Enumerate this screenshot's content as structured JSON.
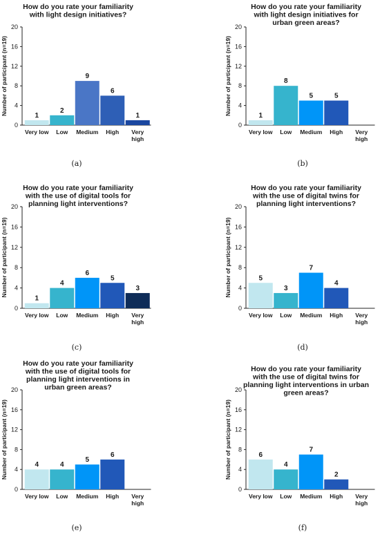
{
  "colors": [
    "#c1e7ef",
    "#36b4cd",
    "#0095f8",
    "#2158b8",
    "#0e2c58"
  ],
  "panels": [
    {
      "caption": "(a)",
      "chart_data": {
        "type": "bar",
        "title_lines": [
          "How do you rate your familiarity",
          "with light design initiatives?"
        ],
        "ylabel": "Number of participant (n=19)",
        "ylim": [
          0,
          20
        ],
        "yticks": [
          0,
          4,
          8,
          12,
          16,
          20
        ],
        "categories": [
          [
            "Very low"
          ],
          [
            "Low"
          ],
          [
            "Medium"
          ],
          [
            "High"
          ],
          [
            "Very",
            "high"
          ]
        ],
        "values": [
          1,
          2,
          9,
          6,
          1
        ],
        "value_labels": [
          "1",
          "2",
          "9",
          "6",
          "1"
        ],
        "bar_colors": [
          "#c1e7ef",
          "#36b4cd",
          "#4a76c6",
          "#2e5fb6",
          "#1a47a0"
        ]
      }
    },
    {
      "caption": "(b)",
      "chart_data": {
        "type": "bar",
        "title_lines": [
          "How do you rate your familiarity",
          "with light design initiatives for",
          "urban green areas?"
        ],
        "ylabel": "Number of participant (n=19)",
        "ylim": [
          0,
          20
        ],
        "yticks": [
          0,
          4,
          8,
          12,
          16,
          20
        ],
        "categories": [
          [
            "Very low"
          ],
          [
            "Low"
          ],
          [
            "Medium"
          ],
          [
            "High"
          ],
          [
            "Very",
            "high"
          ]
        ],
        "values": [
          1,
          8,
          5,
          5,
          null
        ],
        "value_labels": [
          "1",
          "8",
          "5",
          "5",
          ""
        ],
        "bar_colors": [
          "#c1e7ef",
          "#36b4cd",
          "#0095f8",
          "#2158b8",
          "#0e2c58"
        ]
      }
    },
    {
      "caption": "(c)",
      "chart_data": {
        "type": "bar",
        "title_lines": [
          "How do you rate your familiarity",
          "with the use of digital tools for",
          "planning light interventions?"
        ],
        "ylabel": "Number of participant (n=19)",
        "ylim": [
          0,
          20
        ],
        "yticks": [
          0,
          4,
          8,
          12,
          16,
          20
        ],
        "categories": [
          [
            "Very low"
          ],
          [
            "Low"
          ],
          [
            "Medium"
          ],
          [
            "High"
          ],
          [
            "Very",
            "high"
          ]
        ],
        "values": [
          1,
          4,
          6,
          5,
          3
        ],
        "value_labels": [
          "1",
          "4",
          "6",
          "5",
          "3"
        ],
        "bar_colors": [
          "#c1e7ef",
          "#36b4cd",
          "#0095f8",
          "#2158b8",
          "#0e2c58"
        ]
      }
    },
    {
      "caption": "(d)",
      "chart_data": {
        "type": "bar",
        "title_lines": [
          "How do you rate your familiarity",
          "with the use of digital twins for",
          "planning light interventions?"
        ],
        "ylabel": "Number of participant (n=19)",
        "ylim": [
          0,
          20
        ],
        "yticks": [
          0,
          4,
          8,
          12,
          16,
          20
        ],
        "categories": [
          [
            "Very low"
          ],
          [
            "Low"
          ],
          [
            "Medium"
          ],
          [
            "High"
          ],
          [
            "Very",
            "high"
          ]
        ],
        "values": [
          5,
          3,
          7,
          4,
          null
        ],
        "value_labels": [
          "5",
          "3",
          "7",
          "4",
          ""
        ],
        "bar_colors": [
          "#c1e7ef",
          "#36b4cd",
          "#0095f8",
          "#2158b8",
          "#0e2c58"
        ]
      }
    },
    {
      "caption": "(e)",
      "chart_data": {
        "type": "bar",
        "title_lines": [
          "How do you rate your familiarity",
          "with the use of digital tools for",
          "planning light interventions in",
          "urban green areas?"
        ],
        "ylabel": "Number of participant (n=19)",
        "ylim": [
          0,
          20
        ],
        "yticks": [
          0,
          4,
          8,
          12,
          16,
          20
        ],
        "categories": [
          [
            "Very low"
          ],
          [
            "Low"
          ],
          [
            "Medium"
          ],
          [
            "High"
          ],
          [
            "Very",
            "high"
          ]
        ],
        "values": [
          4,
          4,
          5,
          6,
          null
        ],
        "value_labels": [
          "4",
          "4",
          "5",
          "6",
          ""
        ],
        "bar_colors": [
          "#c1e7ef",
          "#36b4cd",
          "#0095f8",
          "#2158b8",
          "#0e2c58"
        ]
      }
    },
    {
      "caption": "(f)",
      "chart_data": {
        "type": "bar",
        "title_lines": [
          "How do you rate your familiarity",
          "with the use of digital twins for",
          "planning light interventions in urban",
          "green areas?"
        ],
        "ylabel": "Number of participant (n=19)",
        "ylim": [
          0,
          20
        ],
        "yticks": [
          0,
          4,
          8,
          12,
          16,
          20
        ],
        "categories": [
          [
            "Very low"
          ],
          [
            "Low"
          ],
          [
            "Medium"
          ],
          [
            "High"
          ],
          [
            "Very",
            "high"
          ]
        ],
        "values": [
          6,
          4,
          7,
          2,
          null
        ],
        "value_labels": [
          "6",
          "4",
          "7",
          "2",
          ""
        ],
        "bar_colors": [
          "#c1e7ef",
          "#36b4cd",
          "#0095f8",
          "#2158b8",
          "#0e2c58"
        ]
      }
    }
  ]
}
